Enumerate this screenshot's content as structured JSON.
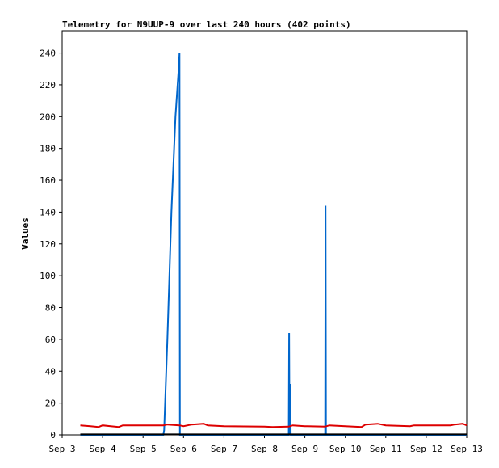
{
  "chart_data": {
    "type": "line",
    "title": "Telemetry for N9UUP-9 over last 240 hours (402 points)",
    "xlabel": "",
    "ylabel": "Values",
    "x_ticks": [
      "Sep 3",
      "Sep 4",
      "Sep 5",
      "Sep 6",
      "Sep 7",
      "Sep 8",
      "Sep 9",
      "Sep 10",
      "Sep 11",
      "Sep 12",
      "Sep 13"
    ],
    "xlim": [
      0,
      10
    ],
    "ylim": [
      0,
      254
    ],
    "y_ticks": [
      0,
      20,
      40,
      60,
      80,
      100,
      120,
      140,
      160,
      180,
      200,
      220,
      240
    ],
    "grid": false,
    "legend": "none",
    "x_unit": "days since Sep 3",
    "series": [
      {
        "color": "#0066cc",
        "points": [
          [
            0.45,
            0
          ],
          [
            2.5,
            0
          ],
          [
            2.52,
            3
          ],
          [
            2.6,
            60
          ],
          [
            2.7,
            140
          ],
          [
            2.8,
            200
          ],
          [
            2.88,
            230
          ],
          [
            2.9,
            240
          ],
          [
            2.91,
            0
          ],
          [
            3.0,
            0
          ],
          [
            5.6,
            0
          ],
          [
            5.61,
            64
          ],
          [
            5.62,
            0
          ],
          [
            5.64,
            32
          ],
          [
            5.65,
            0
          ],
          [
            6.5,
            0
          ],
          [
            6.51,
            144
          ],
          [
            6.52,
            0
          ],
          [
            10.0,
            0
          ]
        ]
      },
      {
        "color": "#dd0000",
        "points": [
          [
            0.45,
            6
          ],
          [
            0.7,
            5.5
          ],
          [
            0.9,
            5
          ],
          [
            1.0,
            6
          ],
          [
            1.2,
            5.5
          ],
          [
            1.4,
            5
          ],
          [
            1.5,
            6
          ],
          [
            2.5,
            6
          ],
          [
            2.6,
            6.5
          ],
          [
            2.9,
            6
          ],
          [
            3.0,
            5.5
          ],
          [
            3.2,
            6.5
          ],
          [
            3.5,
            7
          ],
          [
            3.6,
            6
          ],
          [
            4.0,
            5.5
          ],
          [
            5.0,
            5.2
          ],
          [
            5.2,
            5
          ],
          [
            5.6,
            5.2
          ],
          [
            5.7,
            6
          ],
          [
            6.0,
            5.5
          ],
          [
            6.5,
            5.2
          ],
          [
            6.6,
            6
          ],
          [
            7.0,
            5.5
          ],
          [
            7.4,
            5
          ],
          [
            7.5,
            6.5
          ],
          [
            7.8,
            7
          ],
          [
            8.0,
            6
          ],
          [
            8.6,
            5.5
          ],
          [
            8.7,
            6
          ],
          [
            9.6,
            6
          ],
          [
            9.7,
            6.5
          ],
          [
            9.9,
            7
          ],
          [
            10.0,
            6
          ]
        ]
      },
      {
        "color": "#000000",
        "points": [
          [
            0.45,
            0.3
          ],
          [
            10.0,
            0.3
          ]
        ]
      }
    ]
  }
}
